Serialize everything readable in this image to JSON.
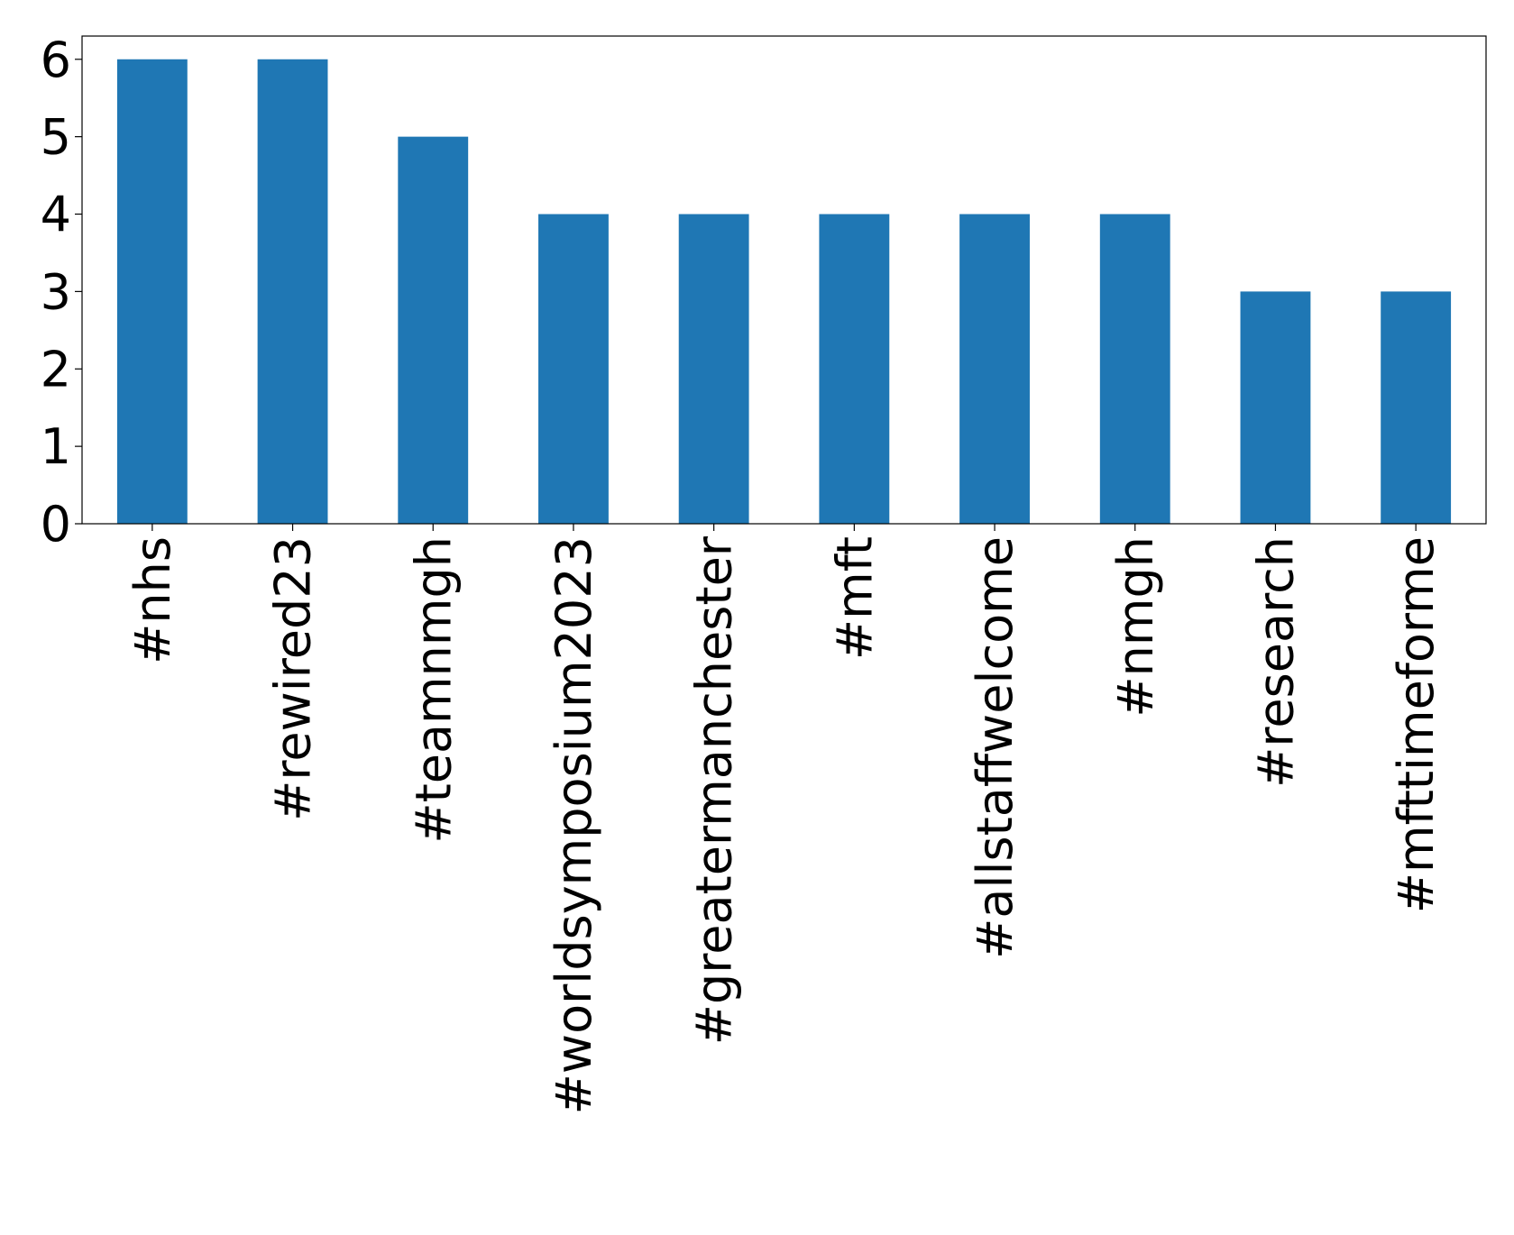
{
  "chart_data": {
    "type": "bar",
    "categories": [
      "#nhs",
      "#rewired23",
      "#teamnmgh",
      "#worldsymposium2023",
      "#greatermanchester",
      "#mft",
      "#allstaffwelcome",
      "#nmgh",
      "#research",
      "#mfttimeforme"
    ],
    "values": [
      6,
      6,
      5,
      4,
      4,
      4,
      4,
      4,
      3,
      3
    ],
    "color": "#1f77b4",
    "ylim": [
      0,
      6.3
    ],
    "yticks": [
      0,
      1,
      2,
      3,
      4,
      5,
      6
    ],
    "grid": false
  }
}
